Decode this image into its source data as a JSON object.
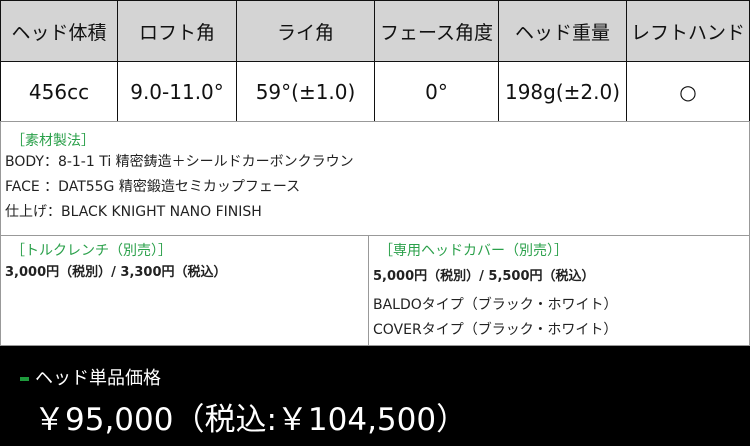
{
  "specs": {
    "headers": [
      "ヘッド体積",
      "ロフト角",
      "ライ角",
      "フェース角度",
      "ヘッド重量",
      "レフトハンド"
    ],
    "values": [
      "456cc",
      "9.0-11.0°",
      "59°(±1.0)",
      "0°",
      "198g(±2.0)",
      "○"
    ]
  },
  "materials": {
    "title": "［素材製法］",
    "lines": [
      "BODY：8-1-1 Ti 精密鋳造＋シールドカーボンクラウン",
      "FACE ：DAT55G 精密鍛造セミカップフェース",
      "仕上げ：BLACK KNIGHT NANO FINISH"
    ]
  },
  "torque": {
    "title": "［トルクレンチ（別売）］",
    "price": "3,000円（税別）/ 3,300円（税込）"
  },
  "headcover": {
    "title": "［専用ヘッドカバー（別売）］",
    "price": "5,000円（税別）/ 5,500円（税込）",
    "types": [
      "BALDOタイプ（ブラック・ホワイト）",
      "COVERタイプ（ブラック・ホワイト）"
    ]
  },
  "footer": {
    "label": "ヘッド単品価格",
    "price": "￥95,000（税込:￥104,500）"
  },
  "colors": {
    "accent": "#2aa04a",
    "header_bg": "#d4d4d4",
    "footer_bg": "#000000"
  }
}
